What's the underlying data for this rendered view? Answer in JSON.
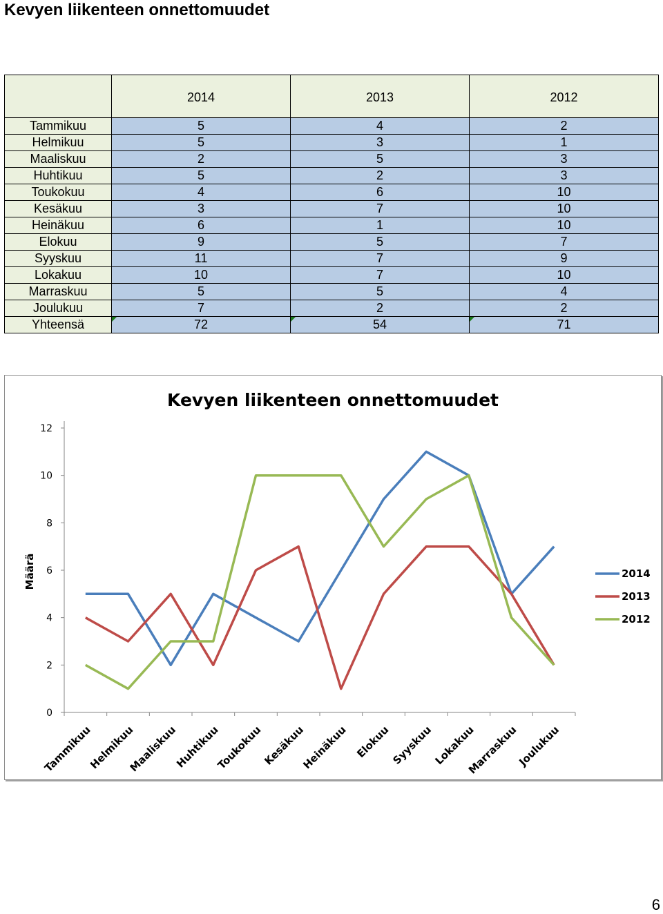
{
  "page": {
    "title": "Kevyen liikenteen onnettomuudet",
    "page_number": "6"
  },
  "table": {
    "columns": [
      "2014",
      "2013",
      "2012"
    ],
    "rows": [
      {
        "label": "Tammikuu",
        "values": [
          "5",
          "4",
          "2"
        ]
      },
      {
        "label": "Helmikuu",
        "values": [
          "5",
          "3",
          "1"
        ]
      },
      {
        "label": "Maaliskuu",
        "values": [
          "2",
          "5",
          "3"
        ]
      },
      {
        "label": "Huhtikuu",
        "values": [
          "5",
          "2",
          "3"
        ]
      },
      {
        "label": "Toukokuu",
        "values": [
          "4",
          "6",
          "10"
        ]
      },
      {
        "label": "Kesäkuu",
        "values": [
          "3",
          "7",
          "10"
        ]
      },
      {
        "label": "Heinäkuu",
        "values": [
          "6",
          "1",
          "10"
        ]
      },
      {
        "label": "Elokuu",
        "values": [
          "9",
          "5",
          "7"
        ]
      },
      {
        "label": "Syyskuu",
        "values": [
          "11",
          "7",
          "9"
        ]
      },
      {
        "label": "Lokakuu",
        "values": [
          "10",
          "7",
          "10"
        ]
      },
      {
        "label": "Marraskuu",
        "values": [
          "5",
          "5",
          "4"
        ]
      },
      {
        "label": "Joulukuu",
        "values": [
          "7",
          "2",
          "2"
        ]
      }
    ],
    "total": {
      "label": "Yhteensä",
      "values": [
        "72",
        "54",
        "71"
      ]
    }
  },
  "chart_data": {
    "type": "line",
    "title": "Kevyen liikenteen onnettomuudet",
    "xlabel": "",
    "ylabel": "Määrä",
    "ylim": [
      0,
      12
    ],
    "yticks": [
      0,
      2,
      4,
      6,
      8,
      10,
      12
    ],
    "grid": false,
    "legend": "right",
    "categories": [
      "Tammikuu",
      "Helmikuu",
      "Maaliskuu",
      "Huhtikuu",
      "Toukokuu",
      "Kesäkuu",
      "Heinäkuu",
      "Elokuu",
      "Syyskuu",
      "Lokakuu",
      "Marraskuu",
      "Joulukuu"
    ],
    "series": [
      {
        "name": "2014",
        "color": "#4a7ebb",
        "values": [
          5,
          5,
          2,
          5,
          4,
          3,
          6,
          9,
          11,
          10,
          5,
          7
        ]
      },
      {
        "name": "2013",
        "color": "#be4b48",
        "values": [
          4,
          3,
          5,
          2,
          6,
          7,
          1,
          5,
          7,
          7,
          5,
          2
        ]
      },
      {
        "name": "2012",
        "color": "#98b954",
        "values": [
          2,
          1,
          3,
          3,
          10,
          10,
          10,
          7,
          9,
          10,
          4,
          2
        ]
      }
    ]
  }
}
